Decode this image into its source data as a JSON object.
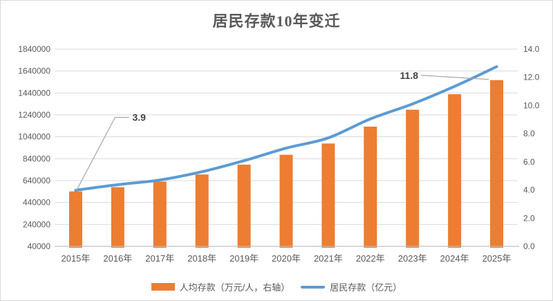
{
  "title": "居民存款10年变迁",
  "chart_data": {
    "type": "bar+line combo",
    "title": "居民存款10年变迁",
    "categories": [
      "2015年",
      "2016年",
      "2017年",
      "2018年",
      "2019年",
      "2020年",
      "2021年",
      "2022年",
      "2023年",
      "2024年",
      "2025年"
    ],
    "series": [
      {
        "name": "人均存款（万元/人，右轴）",
        "type": "bar",
        "axis": "right",
        "color": "#ED7D31",
        "values": [
          3.9,
          4.2,
          4.6,
          5.1,
          5.8,
          6.5,
          7.3,
          8.5,
          9.7,
          10.8,
          11.8
        ]
      },
      {
        "name": "居民存款（亿元）",
        "type": "line",
        "axis": "left",
        "color": "#5B9BD5",
        "values": [
          552000,
          603000,
          646000,
          721000,
          822000,
          936000,
          1030000,
          1203000,
          1340000,
          1500000,
          1680000
        ]
      }
    ],
    "left_axis": {
      "ticks": [
        40000,
        240000,
        440000,
        640000,
        840000,
        1040000,
        1240000,
        1440000,
        1640000,
        1840000
      ],
      "min": 40000,
      "max": 1840000
    },
    "right_axis": {
      "tick_labels": [
        "0.0",
        "2.0",
        "4.0",
        "6.0",
        "8.0",
        "10.0",
        "12.0",
        "14.0"
      ],
      "min": 0,
      "max": 14
    },
    "annotations": [
      {
        "text": "3.9",
        "series": 0,
        "index": 0
      },
      {
        "text": "11.8",
        "series": 0,
        "index": 10
      }
    ],
    "grid": "horizontal",
    "legend_position": "bottom",
    "colors": {
      "bar": "#ED7D31",
      "line": "#5B9BD5",
      "gridline": "#d9d9d9",
      "axis_line": "#bfbfbf",
      "tick_text": "#595959",
      "annotation_text": "#404040",
      "leader_line": "#a6a6a6",
      "background": "#ffffff"
    }
  }
}
